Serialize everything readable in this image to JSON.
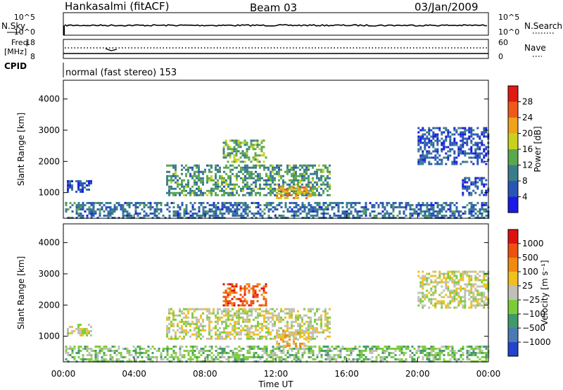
{
  "header": {
    "station": "Hankasalmi (fitACF)",
    "beam": "Beam 03",
    "date": "03/Jan/2009"
  },
  "top_panels": {
    "nsky_label": "N.Sky",
    "nsearch_label": "N.Search",
    "nsky_ticks": [
      "10^5",
      "10^0"
    ],
    "nsearch_ticks": [
      "10^5",
      "10^0"
    ],
    "freq_label_1": "Freq.",
    "freq_label_2": "[MHz]",
    "freq_ticks": [
      "18",
      "8"
    ],
    "nave_label": "Nave",
    "nave_ticks": [
      "60",
      "0"
    ],
    "cpid_label": "CPID",
    "cpid_text": "normal (fast stereo) 153"
  },
  "chart_data": [
    {
      "type": "heatmap",
      "name": "power",
      "ylabel": "Slant Range [km]",
      "xlabel": "Time UT",
      "xticks": [
        "00:00",
        "04:00",
        "08:00",
        "12:00",
        "16:00",
        "20:00",
        "00:00"
      ],
      "yticks": [
        "1000",
        "2000",
        "3000",
        "4000"
      ],
      "ylim": [
        180,
        4600
      ],
      "xlim_hours": [
        0,
        24
      ],
      "colorbar_label": "Power [dB]",
      "colorbar_ticks": [
        "4",
        "8",
        "12",
        "16",
        "20",
        "24",
        "28"
      ],
      "colors": [
        "#1a1ae6",
        "#2a55b8",
        "#3a7d8a",
        "#5aa84d",
        "#c8d21e",
        "#f0a21a",
        "#ee5a18",
        "#e01a12"
      ],
      "regions": [
        {
          "t0": 0.1,
          "t1": 24,
          "r0": 180,
          "r1": 700,
          "level": 1.5
        },
        {
          "t0": 0.2,
          "t1": 1.6,
          "r0": 1050,
          "r1": 1400,
          "level": 1
        },
        {
          "t0": 5.8,
          "t1": 15.0,
          "r0": 900,
          "r1": 1900,
          "level": 2.5
        },
        {
          "t0": 9.0,
          "t1": 11.5,
          "r0": 2000,
          "r1": 2700,
          "level": 3
        },
        {
          "t0": 12.0,
          "t1": 14.0,
          "r0": 800,
          "r1": 1200,
          "level": 5
        },
        {
          "t0": 20.0,
          "t1": 24.0,
          "r0": 1900,
          "r1": 3100,
          "level": 1
        },
        {
          "t0": 22.5,
          "t1": 24.0,
          "r0": 900,
          "r1": 1500,
          "level": 1
        }
      ]
    },
    {
      "type": "heatmap",
      "name": "velocity",
      "ylabel": "Slant Range [km]",
      "xlabel": "Time UT",
      "xticks": [
        "00:00",
        "04:00",
        "08:00",
        "12:00",
        "16:00",
        "20:00",
        "00:00"
      ],
      "yticks": [
        "1000",
        "2000",
        "3000",
        "4000"
      ],
      "ylim": [
        180,
        4600
      ],
      "xlim_hours": [
        0,
        24
      ],
      "colorbar_label": "Velocity [m s⁻¹]",
      "colorbar_ticks": [
        "1000",
        "500",
        "100",
        "25",
        "−25",
        "−100",
        "−500",
        "−1000"
      ],
      "colors": [
        "#2244cc",
        "#4a7ab4",
        "#3f9a6a",
        "#7ccc3a",
        "#c0c0b8",
        "#f0c020",
        "#f08a10",
        "#ee5010",
        "#e01010"
      ],
      "regions": [
        {
          "t0": 0.1,
          "t1": 24,
          "r0": 180,
          "r1": 700,
          "level": 3
        },
        {
          "t0": 0.2,
          "t1": 1.6,
          "r0": 1050,
          "r1": 1400,
          "level": 4
        },
        {
          "t0": 5.8,
          "t1": 15.0,
          "r0": 900,
          "r1": 1900,
          "level": 4
        },
        {
          "t0": 9.0,
          "t1": 11.5,
          "r0": 2000,
          "r1": 2700,
          "level": 7
        },
        {
          "t0": 12.0,
          "t1": 14.0,
          "r0": 700,
          "r1": 1200,
          "level": 5
        },
        {
          "t0": 20.0,
          "t1": 24.0,
          "r0": 1900,
          "r1": 3100,
          "level": 4
        }
      ]
    }
  ],
  "colors": {
    "background": "#ffffff",
    "axis": "#000000"
  }
}
